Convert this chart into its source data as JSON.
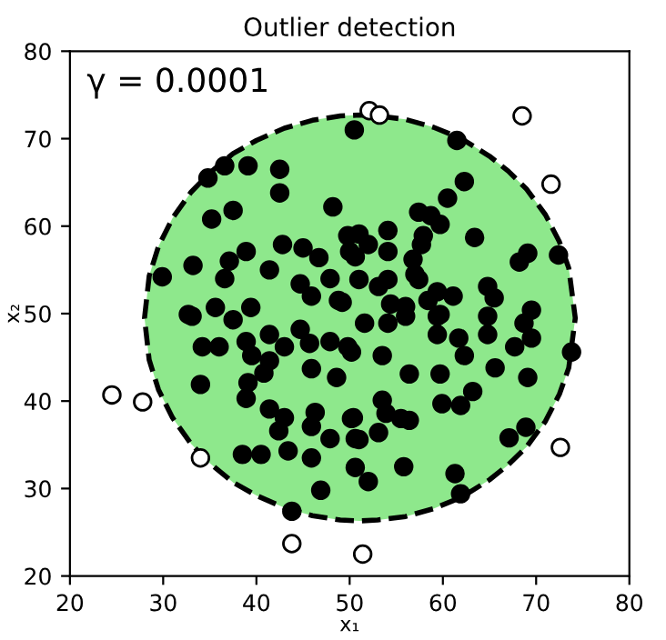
{
  "chart_data": {
    "type": "scatter",
    "title": "Outlier detection",
    "xlabel": "x₁",
    "ylabel": "x₂",
    "annotations": [
      "γ = 0.0001"
    ],
    "xlim": [
      20,
      80
    ],
    "ylim": [
      20,
      80
    ],
    "xticks": [
      20,
      30,
      40,
      50,
      60,
      70,
      80
    ],
    "yticks": [
      20,
      30,
      40,
      50,
      60,
      70,
      80
    ],
    "grid": false,
    "marker": "circle",
    "series": [
      {
        "type": "area",
        "color": "#8ee88c",
        "line_style": "dashed",
        "marker": "none",
        "x": [
          28.0,
          28.5,
          29.5,
          31,
          33,
          35,
          37.5,
          40,
          43,
          46,
          49,
          51.1,
          53,
          56,
          59,
          62,
          65,
          67,
          69,
          71,
          72.5,
          73.5,
          74.2,
          73.5,
          72.5,
          71,
          69,
          67,
          65,
          62,
          59,
          56,
          53,
          51.1,
          49,
          46,
          43,
          40,
          37.5,
          35,
          33,
          31,
          29.5,
          28.5
        ],
        "values": [
          49.5,
          54.3,
          57.7,
          60.9,
          63.9,
          66.1,
          68.3,
          69.8,
          71.2,
          72.1,
          72.6,
          72.7,
          72.6,
          72.2,
          71.3,
          70.0,
          68.0,
          66.3,
          64.2,
          61.3,
          58.2,
          55.2,
          49.5,
          43.8,
          40.8,
          37.7,
          34.8,
          32.7,
          31.0,
          29.0,
          27.7,
          26.8,
          26.4,
          26.3,
          26.4,
          26.9,
          27.8,
          29.2,
          30.7,
          32.9,
          35.1,
          38.1,
          41.3,
          44.7
        ]
      },
      {
        "color": "#000000",
        "x": [
          50.5,
          34.8,
          36.6,
          39.1,
          42.5,
          42.5,
          37.5,
          35.2,
          48.2,
          29.9,
          33.2,
          37.1,
          38.9,
          42.8,
          45.0,
          46.7,
          49.8,
          50.6,
          36.6,
          41.4,
          44.7,
          47.9,
          39.4,
          35.6,
          32.7,
          45.9,
          49.2,
          61.5,
          62.3,
          60.5,
          57.4,
          58.7,
          59.7,
          57.9,
          57.7,
          63.4,
          54.1,
          54.1,
          51.0,
          52.0,
          50.0,
          69.1,
          68.2,
          72.4,
          56.8,
          57.0,
          57.4,
          51.0,
          53.1,
          54.1,
          61.1,
          64.8,
          65.5,
          59.4,
          58.4,
          56.0,
          54.4,
          69.5,
          59.7,
          48.8,
          33.1,
          37.5,
          34.2,
          36.0,
          38.9,
          39.5,
          41.4,
          43.0,
          44.7,
          45.7,
          47.9,
          49.8,
          45.9,
          48.6,
          41.4,
          40.8,
          34.0,
          39.1,
          38.9,
          41.4,
          43.0,
          42.4,
          46.3,
          45.9,
          47.9,
          50.4,
          50.6,
          38.5,
          40.5,
          43.4,
          45.9,
          46.9,
          43.8,
          50.6,
          51.6,
          54.1,
          56.0,
          59.4,
          59.4,
          61.7,
          64.8,
          64.8,
          68.7,
          69.5,
          67.7,
          73.8,
          50.2,
          53.5,
          56.4,
          59.7,
          62.3,
          65.6,
          69.1,
          63.2,
          59.9,
          61.9,
          53.5,
          53.9,
          55.5,
          56.4,
          50.2,
          51.0,
          53.1,
          67.1,
          68.9,
          52.0,
          55.8,
          61.3,
          61.9
        ],
        "values": [
          71.0,
          65.5,
          66.9,
          66.9,
          66.5,
          63.8,
          61.8,
          60.8,
          62.2,
          54.2,
          55.5,
          56.0,
          57.1,
          57.9,
          57.5,
          56.4,
          58.9,
          56.5,
          54.0,
          55.0,
          53.4,
          54.0,
          50.7,
          50.7,
          49.9,
          52.0,
          51.3,
          69.8,
          65.1,
          63.2,
          61.6,
          61.2,
          60.2,
          58.9,
          57.9,
          58.7,
          59.5,
          57.1,
          59.1,
          57.9,
          57.1,
          56.9,
          55.9,
          56.7,
          56.2,
          54.5,
          53.9,
          53.9,
          53.1,
          53.9,
          52.0,
          53.1,
          51.8,
          52.5,
          51.5,
          50.8,
          51.1,
          50.4,
          49.9,
          51.5,
          49.7,
          49.3,
          46.2,
          46.2,
          46.8,
          45.2,
          47.6,
          46.2,
          48.2,
          46.6,
          46.8,
          46.2,
          43.7,
          42.7,
          44.6,
          43.2,
          41.9,
          42.1,
          40.3,
          39.1,
          38.1,
          36.6,
          38.7,
          37.1,
          35.7,
          38.1,
          35.7,
          33.9,
          33.9,
          34.3,
          33.5,
          29.8,
          27.4,
          32.4,
          48.9,
          48.9,
          49.7,
          49.7,
          47.6,
          47.2,
          49.7,
          47.6,
          48.9,
          47.2,
          46.2,
          45.6,
          45.6,
          45.2,
          43.1,
          43.1,
          45.2,
          43.8,
          42.7,
          41.1,
          39.7,
          39.5,
          40.1,
          38.6,
          38.0,
          37.8,
          38.0,
          35.6,
          36.4,
          35.8,
          37.0,
          30.8,
          32.5,
          31.7,
          29.4
        ]
      },
      {
        "type": "scatter",
        "color": "#ffffff",
        "x": [
          52.1,
          53.2,
          68.5,
          71.6,
          24.5,
          27.8,
          34.0,
          43.8,
          51.4,
          72.6
        ],
        "values": [
          73.2,
          72.7,
          72.6,
          64.8,
          40.7,
          39.9,
          33.5,
          23.7,
          22.5,
          34.7
        ]
      }
    ]
  }
}
